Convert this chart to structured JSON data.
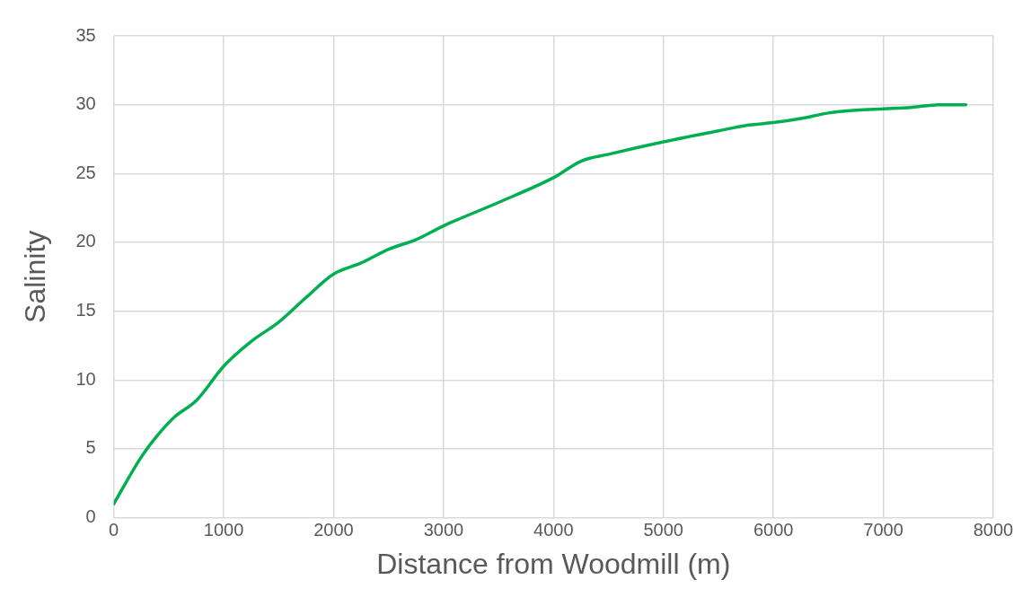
{
  "chart_data": {
    "type": "line",
    "xlabel": "Distance from Woodmill (m)",
    "ylabel": "Salinity",
    "x": [
      0,
      250,
      400,
      550,
      750,
      1000,
      1250,
      1500,
      1750,
      2000,
      2250,
      2500,
      2750,
      3000,
      3500,
      4000,
      4250,
      4500,
      5000,
      5500,
      5750,
      6000,
      6250,
      6500,
      6750,
      7000,
      7250,
      7500,
      7750
    ],
    "series": [
      {
        "color": "#00b050",
        "values": [
          1,
          4.4,
          6.0,
          7.3,
          8.5,
          11.0,
          12.8,
          14.2,
          16.0,
          17.7,
          18.5,
          19.5,
          20.2,
          21.2,
          22.9,
          24.7,
          25.9,
          26.4,
          27.3,
          28.1,
          28.5,
          28.7,
          29.0,
          29.4,
          29.6,
          29.7,
          29.8,
          30.0,
          30.0
        ]
      }
    ],
    "xlim": [
      0,
      8000
    ],
    "xticks": [
      0,
      1000,
      2000,
      3000,
      4000,
      5000,
      6000,
      7000,
      8000
    ],
    "ylim": [
      0,
      35
    ],
    "yticks": [
      0,
      5,
      10,
      15,
      20,
      25,
      30,
      35
    ],
    "grid": true,
    "legend": false,
    "marker": "none",
    "line_style": "solid"
  }
}
